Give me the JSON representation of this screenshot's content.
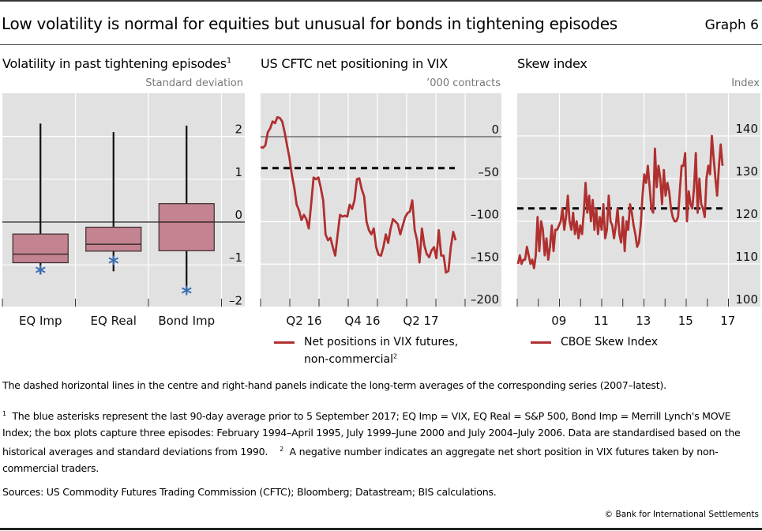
{
  "header": {
    "title": "Low volatility is normal for equities but unusual for bonds in tightening episodes",
    "graph_number": "Graph 6"
  },
  "colors": {
    "series_line": "#b03030",
    "box_fill": "#c27d8b",
    "asterisk": "#3a6fb5",
    "plot_bg": "#e1e1e1",
    "dashed": "#000000"
  },
  "chart_data": [
    {
      "type": "box",
      "title": "Volatility in past tightening episodes",
      "title_footnote": "1",
      "unit_label": "Standard deviation",
      "ylim": [
        -2,
        3
      ],
      "yticks": [
        2,
        1,
        0,
        -1,
        -2
      ],
      "ytick_labels": [
        "2",
        "1",
        "0",
        "–1",
        "–2"
      ],
      "categories": [
        "EQ Imp",
        "EQ Real",
        "Bond Imp"
      ],
      "boxes": [
        {
          "name": "EQ Imp",
          "whisker_high": 2.3,
          "q3": -0.28,
          "median": -0.75,
          "q1": -0.95,
          "whisker_low": -1.22,
          "asterisk": -1.1
        },
        {
          "name": "EQ Real",
          "whisker_high": 2.1,
          "q3": -0.12,
          "median": -0.52,
          "q1": -0.68,
          "whisker_low": -1.15,
          "asterisk": -0.88
        },
        {
          "name": "Bond Imp",
          "whisker_high": 2.25,
          "q3": 0.43,
          "median": 0.0,
          "q1": -0.67,
          "whisker_low": -1.6,
          "asterisk": -1.58
        }
      ],
      "zero_line": 0
    },
    {
      "type": "line",
      "title": "US CFTC net positioning in VIX",
      "unit_label": "’000 contracts",
      "ylim": [
        -200,
        30
      ],
      "yticks": [
        0,
        -50,
        -100,
        -150,
        -200
      ],
      "ytick_labels": [
        "0",
        "–50",
        "–100",
        "–150",
        "–200"
      ],
      "xtick_labels": [
        "Q2 16",
        "Q4 16",
        "Q2 17"
      ],
      "x_range_quarters": [
        "Q1 16",
        "Q4 17"
      ],
      "long_term_average": -37,
      "series": [
        {
          "name": "Net positions in VIX futures, non-commercial",
          "legend_footnote": "2",
          "values": [
            -12,
            -13,
            -10,
            5,
            10,
            18,
            16,
            23,
            22,
            18,
            5,
            -10,
            -25,
            -45,
            -60,
            -80,
            -87,
            -98,
            -92,
            -97,
            -108,
            -80,
            -48,
            -50,
            -48,
            -60,
            -75,
            -115,
            -122,
            -119,
            -130,
            -140,
            -115,
            -92,
            -94,
            -93,
            -94,
            -80,
            -85,
            -75,
            -50,
            -49,
            -62,
            -70,
            -100,
            -110,
            -115,
            -108,
            -130,
            -139,
            -140,
            -130,
            -115,
            -125,
            -108,
            -97,
            -100,
            -103,
            -115,
            -105,
            -95,
            -90,
            -88,
            -75,
            -110,
            -122,
            -148,
            -108,
            -128,
            -138,
            -142,
            -134,
            -130,
            -143,
            -110,
            -140,
            -140,
            -160,
            -158,
            -130,
            -112,
            -122
          ]
        }
      ]
    },
    {
      "type": "line",
      "title": "Skew index",
      "unit_label": "Index",
      "ylim": [
        100,
        145
      ],
      "yticks": [
        140,
        130,
        120,
        110,
        100
      ],
      "ytick_labels": [
        "140",
        "130",
        "120",
        "110",
        "100"
      ],
      "xtick_labels": [
        "09",
        "11",
        "13",
        "15",
        "17"
      ],
      "x_range_years": [
        2008,
        2017.7
      ],
      "long_term_average": 123,
      "series": [
        {
          "name": "CBOE Skew Index",
          "values": [
            110,
            112,
            110,
            111,
            111,
            114,
            112,
            110,
            111,
            109,
            112,
            121,
            113,
            120,
            118,
            112,
            116,
            111,
            114,
            119,
            113,
            118,
            118,
            119,
            120,
            123,
            118,
            121,
            126,
            120,
            118,
            122,
            117,
            120,
            116,
            119,
            117,
            122,
            129,
            122,
            126,
            120,
            125,
            118,
            123,
            117,
            121,
            118,
            124,
            116,
            118,
            126,
            120,
            119,
            116,
            119,
            123,
            117,
            115,
            121,
            113,
            120,
            118,
            124,
            122,
            119,
            117,
            114,
            115,
            119,
            126,
            131,
            129,
            133,
            128,
            123,
            122,
            137,
            128,
            133,
            130,
            124,
            132,
            126,
            129,
            127,
            123,
            121,
            120,
            120,
            121,
            127,
            133,
            133,
            136,
            120,
            127,
            124,
            123,
            128,
            136,
            122,
            130,
            124,
            123,
            121,
            130,
            133,
            131,
            140,
            135,
            130,
            126,
            133,
            138,
            133
          ]
        }
      ]
    }
  ],
  "notes": {
    "general": "The dashed horizontal lines in the centre and right-hand panels indicate the long-term averages of the corresponding series (2007–latest).",
    "footnote1_marker": "1",
    "footnote1": "The blue asterisks represent the last 90-day average prior to 5 September 2017; EQ Imp = VIX, EQ Real = S&P 500, Bond Imp = Merrill Lynch's MOVE Index; the box plots capture three episodes: February 1994–April 1995, July 1999–June 2000 and July 2004–July 2006. Data are standardised based on the historical averages and standard deviations from 1990.",
    "footnote2_marker": "2",
    "footnote2": "A negative number indicates an aggregate net short position in VIX futures taken by non-commercial traders.",
    "sources": "Sources: US Commodity Futures Trading Commission (CFTC); Bloomberg; Datastream; BIS calculations.",
    "copyright": "© Bank for International Settlements"
  }
}
